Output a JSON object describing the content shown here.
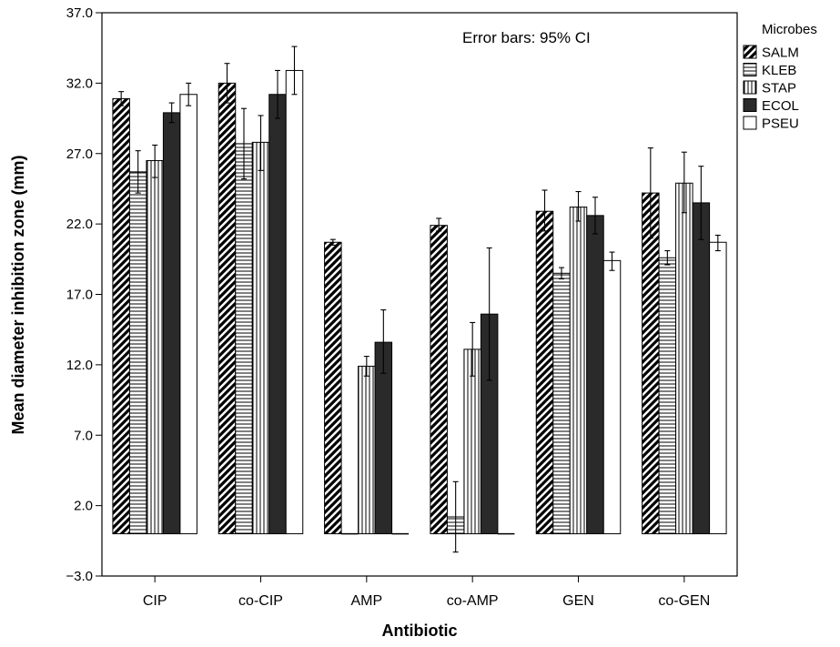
{
  "chart_data": {
    "type": "bar",
    "title": "",
    "annotation": "Error bars: 95% CI",
    "xlabel": "Antibiotic",
    "ylabel": "Mean diameter inhibition zone (mm)",
    "ylim": [
      -3.0,
      37.0
    ],
    "yticks": [
      "−3.0",
      "2.0",
      "7.0",
      "12.0",
      "17.0",
      "22.0",
      "27.0",
      "32.0",
      "37.0"
    ],
    "ytick_values": [
      -3,
      2,
      7,
      12,
      17,
      22,
      27,
      32,
      37
    ],
    "categories": [
      "CIP",
      "co-CIP",
      "AMP",
      "co-AMP",
      "GEN",
      "co-GEN"
    ],
    "legend_title": "Microbes",
    "legend_position": "right",
    "series": [
      {
        "name": "SALM",
        "pattern": "diagonal",
        "values": [
          30.9,
          32.0,
          20.7,
          21.9,
          22.9,
          24.2
        ],
        "ci_low": [
          30.4,
          30.6,
          20.5,
          21.5,
          21.5,
          21.0
        ],
        "ci_high": [
          31.4,
          33.4,
          20.9,
          22.4,
          24.4,
          27.4
        ]
      },
      {
        "name": "KLEB",
        "pattern": "horizontal",
        "values": [
          25.7,
          27.7,
          0.0,
          1.2,
          18.5,
          19.6
        ],
        "ci_low": [
          24.2,
          25.2,
          0.0,
          -1.3,
          18.1,
          19.1
        ],
        "ci_high": [
          27.2,
          30.2,
          0.0,
          3.7,
          18.9,
          20.1
        ]
      },
      {
        "name": "STAP",
        "pattern": "vertical",
        "values": [
          26.5,
          27.8,
          11.9,
          13.1,
          23.2,
          24.9
        ],
        "ci_low": [
          25.3,
          25.8,
          11.2,
          11.2,
          22.2,
          22.8
        ],
        "ci_high": [
          27.6,
          29.7,
          12.6,
          15.0,
          24.3,
          27.1
        ]
      },
      {
        "name": "ECOL",
        "pattern": "dark",
        "values": [
          29.9,
          31.2,
          13.6,
          15.6,
          22.6,
          23.5
        ],
        "ci_low": [
          29.2,
          29.5,
          11.4,
          10.9,
          21.3,
          20.9
        ],
        "ci_high": [
          30.6,
          32.9,
          15.9,
          20.3,
          23.9,
          26.1
        ]
      },
      {
        "name": "PSEU",
        "pattern": "white",
        "values": [
          31.2,
          32.9,
          0.0,
          0.0,
          19.4,
          20.7
        ],
        "ci_low": [
          30.4,
          31.2,
          0.0,
          0.0,
          18.7,
          20.1
        ],
        "ci_high": [
          32.0,
          34.6,
          0.0,
          0.0,
          20.0,
          21.2
        ]
      }
    ],
    "colors": {
      "dark": "#2a2a2a",
      "edge": "#000000",
      "white": "#ffffff"
    },
    "grid": false
  }
}
